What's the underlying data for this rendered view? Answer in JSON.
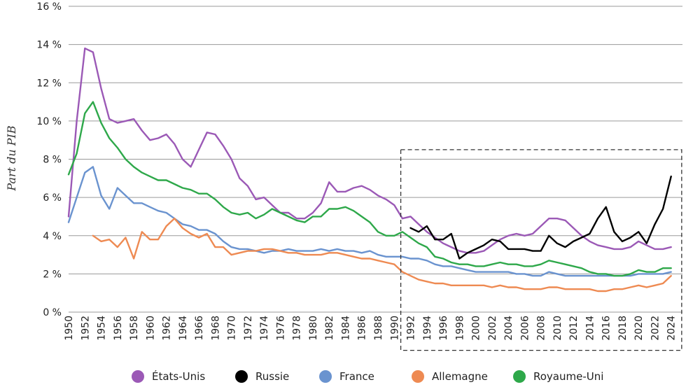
{
  "chart_data": {
    "type": "line",
    "title": "",
    "xlabel": "",
    "ylabel": "Part du PIB",
    "ylim": [
      0,
      16
    ],
    "y_ticks": [
      "0 %",
      "2 %",
      "4 %",
      "6 %",
      "8 %",
      "10 %",
      "12 %",
      "14 %",
      "16 %"
    ],
    "x_ticks": [
      "1950",
      "1952",
      "1954",
      "1956",
      "1958",
      "1960",
      "1962",
      "1964",
      "1966",
      "1968",
      "1970",
      "1972",
      "1974",
      "1976",
      "1978",
      "1980",
      "1982",
      "1984",
      "1986",
      "1988",
      "1990",
      "1992",
      "1994",
      "1996",
      "1998",
      "2000",
      "2002",
      "2004",
      "2006",
      "2008",
      "2010",
      "2012",
      "2014",
      "2016",
      "2018",
      "2020",
      "2022",
      "2024"
    ],
    "grid": "horizontal",
    "legend_position": "bottom",
    "highlight_box": {
      "x_start": 1990.8,
      "x_end": 2025.3,
      "y_low": -2,
      "y_high": 8.5
    },
    "series": [
      {
        "name": "États-Unis",
        "color": "#9b59b6",
        "x": [
          1950,
          1951,
          1952,
          1953,
          1954,
          1955,
          1956,
          1957,
          1958,
          1959,
          1960,
          1961,
          1962,
          1963,
          1964,
          1965,
          1966,
          1967,
          1968,
          1969,
          1970,
          1971,
          1972,
          1973,
          1974,
          1975,
          1976,
          1977,
          1978,
          1979,
          1980,
          1981,
          1982,
          1983,
          1984,
          1985,
          1986,
          1987,
          1988,
          1989,
          1990,
          1991,
          1992,
          1993,
          1994,
          1995,
          1996,
          1997,
          1998,
          1999,
          2000,
          2001,
          2002,
          2003,
          2004,
          2005,
          2006,
          2007,
          2008,
          2009,
          2010,
          2011,
          2012,
          2013,
          2014,
          2015,
          2016,
          2017,
          2018,
          2019,
          2020,
          2021,
          2022,
          2023,
          2024
        ],
        "y": [
          5.0,
          10.0,
          13.8,
          13.6,
          11.7,
          10.1,
          9.9,
          10.0,
          10.1,
          9.5,
          9.0,
          9.1,
          9.3,
          8.8,
          8.0,
          7.6,
          8.5,
          9.4,
          9.3,
          8.7,
          8.0,
          7.0,
          6.6,
          5.9,
          6.0,
          5.6,
          5.2,
          5.2,
          4.9,
          4.9,
          5.2,
          5.7,
          6.8,
          6.3,
          6.3,
          6.5,
          6.6,
          6.4,
          6.1,
          5.9,
          5.6,
          4.9,
          5.0,
          4.6,
          4.2,
          3.9,
          3.6,
          3.4,
          3.2,
          3.1,
          3.1,
          3.2,
          3.5,
          3.8,
          4.0,
          4.1,
          4.0,
          4.1,
          4.5,
          4.9,
          4.9,
          4.8,
          4.4,
          4.0,
          3.7,
          3.5,
          3.4,
          3.3,
          3.3,
          3.4,
          3.7,
          3.5,
          3.3,
          3.3,
          3.4
        ]
      },
      {
        "name": "Russie",
        "color": "#000000",
        "x": [
          1992,
          1993,
          1994,
          1995,
          1996,
          1997,
          1998,
          1999,
          2000,
          2001,
          2002,
          2003,
          2004,
          2005,
          2006,
          2007,
          2008,
          2009,
          2010,
          2011,
          2012,
          2013,
          2014,
          2015,
          2016,
          2017,
          2018,
          2019,
          2020,
          2021,
          2022,
          2023,
          2024
        ],
        "y": [
          4.4,
          4.2,
          4.5,
          3.8,
          3.8,
          4.1,
          2.8,
          3.1,
          3.3,
          3.5,
          3.8,
          3.7,
          3.3,
          3.3,
          3.3,
          3.2,
          3.2,
          4.0,
          3.6,
          3.4,
          3.7,
          3.9,
          4.1,
          4.9,
          5.5,
          4.2,
          3.7,
          3.9,
          4.2,
          3.6,
          4.6,
          5.4,
          7.1
        ]
      },
      {
        "name": "France",
        "color": "#6a93cf",
        "x": [
          1950,
          1951,
          1952,
          1953,
          1954,
          1955,
          1956,
          1957,
          1958,
          1959,
          1960,
          1961,
          1962,
          1963,
          1964,
          1965,
          1966,
          1967,
          1968,
          1969,
          1970,
          1971,
          1972,
          1973,
          1974,
          1975,
          1976,
          1977,
          1978,
          1979,
          1980,
          1981,
          1982,
          1983,
          1984,
          1985,
          1986,
          1987,
          1988,
          1989,
          1990,
          1991,
          1992,
          1993,
          1994,
          1995,
          1996,
          1997,
          1998,
          1999,
          2000,
          2001,
          2002,
          2003,
          2004,
          2005,
          2006,
          2007,
          2008,
          2009,
          2010,
          2011,
          2012,
          2013,
          2014,
          2015,
          2016,
          2017,
          2018,
          2019,
          2020,
          2021,
          2022,
          2023,
          2024
        ],
        "y": [
          4.7,
          6.0,
          7.3,
          7.6,
          6.1,
          5.4,
          6.5,
          6.1,
          5.7,
          5.7,
          5.5,
          5.3,
          5.2,
          4.9,
          4.6,
          4.5,
          4.3,
          4.3,
          4.1,
          3.7,
          3.4,
          3.3,
          3.3,
          3.2,
          3.1,
          3.2,
          3.2,
          3.3,
          3.2,
          3.2,
          3.2,
          3.3,
          3.2,
          3.3,
          3.2,
          3.2,
          3.1,
          3.2,
          3.0,
          2.9,
          2.9,
          2.9,
          2.8,
          2.8,
          2.7,
          2.5,
          2.4,
          2.4,
          2.3,
          2.2,
          2.1,
          2.1,
          2.1,
          2.1,
          2.1,
          2.0,
          2.0,
          1.9,
          1.9,
          2.1,
          2.0,
          1.9,
          1.9,
          1.9,
          1.9,
          1.9,
          1.9,
          1.9,
          1.9,
          1.9,
          2.0,
          2.0,
          2.0,
          2.0,
          2.1
        ]
      },
      {
        "name": "Allemagne",
        "color": "#ee8a52",
        "x": [
          1953,
          1954,
          1955,
          1956,
          1957,
          1958,
          1959,
          1960,
          1961,
          1962,
          1963,
          1964,
          1965,
          1966,
          1967,
          1968,
          1969,
          1970,
          1971,
          1972,
          1973,
          1974,
          1975,
          1976,
          1977,
          1978,
          1979,
          1980,
          1981,
          1982,
          1983,
          1984,
          1985,
          1986,
          1987,
          1988,
          1989,
          1990,
          1991,
          1992,
          1993,
          1994,
          1995,
          1996,
          1997,
          1998,
          1999,
          2000,
          2001,
          2002,
          2003,
          2004,
          2005,
          2006,
          2007,
          2008,
          2009,
          2010,
          2011,
          2012,
          2013,
          2014,
          2015,
          2016,
          2017,
          2018,
          2019,
          2020,
          2021,
          2022,
          2023,
          2024
        ],
        "y": [
          4.0,
          3.7,
          3.8,
          3.4,
          3.9,
          2.8,
          4.2,
          3.8,
          3.8,
          4.5,
          4.9,
          4.4,
          4.1,
          3.9,
          4.1,
          3.4,
          3.4,
          3.0,
          3.1,
          3.2,
          3.2,
          3.3,
          3.3,
          3.2,
          3.1,
          3.1,
          3.0,
          3.0,
          3.0,
          3.1,
          3.1,
          3.0,
          2.9,
          2.8,
          2.8,
          2.7,
          2.6,
          2.5,
          2.1,
          1.9,
          1.7,
          1.6,
          1.5,
          1.5,
          1.4,
          1.4,
          1.4,
          1.4,
          1.4,
          1.3,
          1.4,
          1.3,
          1.3,
          1.2,
          1.2,
          1.2,
          1.3,
          1.3,
          1.2,
          1.2,
          1.2,
          1.2,
          1.1,
          1.1,
          1.2,
          1.2,
          1.3,
          1.4,
          1.3,
          1.4,
          1.5,
          1.9
        ]
      },
      {
        "name": "Royaume-Uni",
        "color": "#2ea84a",
        "x": [
          1950,
          1951,
          1952,
          1953,
          1954,
          1955,
          1956,
          1957,
          1958,
          1959,
          1960,
          1961,
          1962,
          1963,
          1964,
          1965,
          1966,
          1967,
          1968,
          1969,
          1970,
          1971,
          1972,
          1973,
          1974,
          1975,
          1976,
          1977,
          1978,
          1979,
          1980,
          1981,
          1982,
          1983,
          1984,
          1985,
          1986,
          1987,
          1988,
          1989,
          1990,
          1991,
          1992,
          1993,
          1994,
          1995,
          1996,
          1997,
          1998,
          1999,
          2000,
          2001,
          2002,
          2003,
          2004,
          2005,
          2006,
          2007,
          2008,
          2009,
          2010,
          2011,
          2012,
          2013,
          2014,
          2015,
          2016,
          2017,
          2018,
          2019,
          2020,
          2021,
          2022,
          2023,
          2024
        ],
        "y": [
          7.2,
          8.3,
          10.4,
          11.0,
          9.9,
          9.1,
          8.6,
          8.0,
          7.6,
          7.3,
          7.1,
          6.9,
          6.9,
          6.7,
          6.5,
          6.4,
          6.2,
          6.2,
          5.9,
          5.5,
          5.2,
          5.1,
          5.2,
          4.9,
          5.1,
          5.4,
          5.2,
          5.0,
          4.8,
          4.7,
          5.0,
          5.0,
          5.4,
          5.4,
          5.5,
          5.3,
          5.0,
          4.7,
          4.2,
          4.0,
          4.0,
          4.2,
          3.9,
          3.6,
          3.4,
          2.9,
          2.8,
          2.6,
          2.5,
          2.5,
          2.4,
          2.4,
          2.5,
          2.6,
          2.5,
          2.5,
          2.4,
          2.4,
          2.5,
          2.7,
          2.6,
          2.5,
          2.4,
          2.3,
          2.1,
          2.0,
          2.0,
          1.9,
          1.9,
          2.0,
          2.2,
          2.1,
          2.1,
          2.3,
          2.3
        ]
      }
    ]
  }
}
